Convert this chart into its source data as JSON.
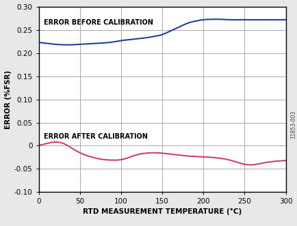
{
  "title": "",
  "xlabel": "RTD MEASUREMENT TEMPERATURE (°C)",
  "ylabel": "ERROR (%FSR)",
  "xlim": [
    0,
    300
  ],
  "ylim": [
    -0.1,
    0.3
  ],
  "xticks": [
    0,
    50,
    100,
    150,
    200,
    250,
    300
  ],
  "yticks": [
    -0.1,
    -0.05,
    0,
    0.05,
    0.1,
    0.15,
    0.2,
    0.25,
    0.3
  ],
  "ytick_labels": [
    "-0.10",
    "-0.05",
    "0",
    "0.05",
    "0.10",
    "0.15",
    "0.20",
    "0.25",
    "0.30"
  ],
  "before_label": "ERROR BEFORE CALIBRATION",
  "after_label": "ERROR AFTER CALIBRATION",
  "before_color": "#2040a0",
  "after_color": "#d04060",
  "watermark": "11853-003",
  "before_x": [
    0,
    10,
    20,
    30,
    40,
    50,
    60,
    70,
    80,
    90,
    100,
    110,
    120,
    130,
    140,
    150,
    160,
    170,
    180,
    190,
    200,
    210,
    220,
    230,
    240,
    250,
    260,
    270,
    280,
    290,
    300
  ],
  "before_y": [
    0.223,
    0.221,
    0.219,
    0.218,
    0.218,
    0.219,
    0.22,
    0.221,
    0.222,
    0.224,
    0.227,
    0.229,
    0.231,
    0.233,
    0.236,
    0.24,
    0.248,
    0.256,
    0.264,
    0.269,
    0.272,
    0.273,
    0.273,
    0.272,
    0.272,
    0.272,
    0.272,
    0.272,
    0.272,
    0.272,
    0.272
  ],
  "after_x": [
    0,
    10,
    20,
    30,
    40,
    50,
    60,
    70,
    80,
    90,
    100,
    110,
    120,
    130,
    140,
    150,
    160,
    170,
    180,
    190,
    200,
    210,
    220,
    230,
    240,
    250,
    260,
    270,
    280,
    290,
    300
  ],
  "after_y": [
    0.001,
    0.005,
    0.008,
    0.005,
    -0.005,
    -0.015,
    -0.022,
    -0.027,
    -0.03,
    -0.031,
    -0.03,
    -0.025,
    -0.019,
    -0.016,
    -0.015,
    -0.016,
    -0.018,
    -0.02,
    -0.022,
    -0.023,
    -0.024,
    -0.025,
    -0.027,
    -0.03,
    -0.035,
    -0.04,
    -0.041,
    -0.038,
    -0.035,
    -0.033,
    -0.032
  ],
  "background_color": "#e8e8e8",
  "plot_bg": "#ffffff"
}
